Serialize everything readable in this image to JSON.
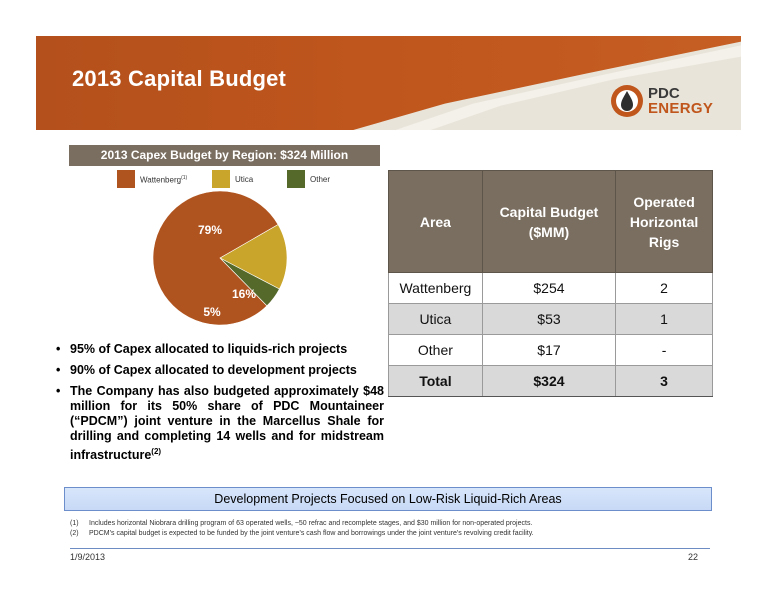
{
  "slide": {
    "title": "2013 Capital Budget",
    "logo": {
      "line1": "PDC",
      "line2": "ENERGY"
    }
  },
  "colors": {
    "header_orange": "#c0571d",
    "table_header": "#7a6e60",
    "wattenberg": "#b0541f",
    "utica": "#c9a52b",
    "other": "#55692a",
    "banner": "#c7d9f6"
  },
  "chart_data": {
    "type": "pie",
    "title": "2013 Capex Budget by Region: $324 Million",
    "legend_placement": "top",
    "slices": [
      {
        "name": "Wattenberg",
        "footnote": "(1)",
        "percent": 79,
        "label": "79%",
        "color": "#b0541f"
      },
      {
        "name": "Utica",
        "percent": 16,
        "label": "16%",
        "color": "#c9a52b"
      },
      {
        "name": "Other",
        "percent": 5,
        "label": "5%",
        "color": "#55692a"
      }
    ]
  },
  "bullets": [
    {
      "text": "95% of Capex allocated to liquids-rich projects"
    },
    {
      "text": "90% of Capex allocated to development projects"
    },
    {
      "text": "The Company has also budgeted approximately $48 million for its 50% share of PDC Mountaineer (“PDCM”) joint venture in the Marcellus Shale for drilling and completing 14 wells and for midstream infrastructure",
      "sup": "(2)"
    }
  ],
  "table": {
    "headers": [
      "Area",
      "Capital Budget ($MM)",
      "Operated Horizontal Rigs"
    ],
    "rows": [
      [
        "Wattenberg",
        "$254",
        "2"
      ],
      [
        "Utica",
        "$53",
        "1"
      ],
      [
        "Other",
        "$17",
        "-"
      ]
    ],
    "total": [
      "Total",
      "$324",
      "3"
    ]
  },
  "banner": "Development Projects Focused on Low-Risk Liquid-Rich Areas",
  "footnotes": [
    {
      "num": "(1)",
      "text": "Includes horizontal Niobrara drilling program of 63 operated wells, ~50 refrac and recomplete stages, and $30 million for non-operated projects."
    },
    {
      "num": "(2)",
      "text": "PDCM’s capital budget is expected to be funded by the joint venture’s cash flow and borrowings under the joint venture’s revolving credit facility."
    }
  ],
  "footer": {
    "date": "1/9/2013",
    "page": "22"
  }
}
